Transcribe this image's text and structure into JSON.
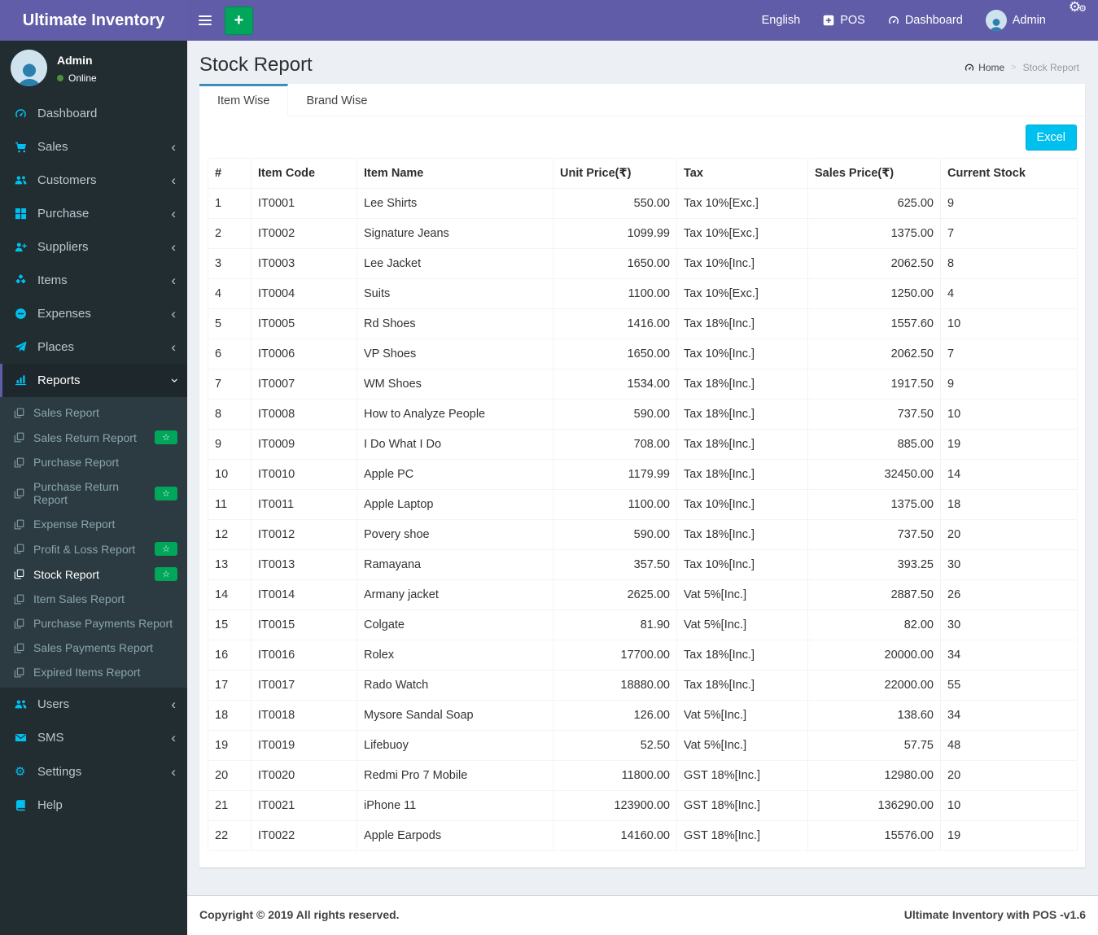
{
  "app": {
    "title": "Ultimate Inventory"
  },
  "navbar": {
    "language": "English",
    "pos": "POS",
    "dashboard": "Dashboard",
    "user": "Admin"
  },
  "sidebar": {
    "user": {
      "name": "Admin",
      "status": "Online"
    },
    "items": [
      {
        "id": "dashboard",
        "icon": "dashboard-icon",
        "label": "Dashboard"
      },
      {
        "id": "sales",
        "icon": "cart-icon",
        "label": "Sales",
        "chevron": "left"
      },
      {
        "id": "customers",
        "icon": "users-icon",
        "label": "Customers",
        "chevron": "left"
      },
      {
        "id": "purchase",
        "icon": "grid-icon",
        "label": "Purchase",
        "chevron": "left"
      },
      {
        "id": "suppliers",
        "icon": "user-plus-icon",
        "label": "Suppliers",
        "chevron": "left"
      },
      {
        "id": "items",
        "icon": "cubes-icon",
        "label": "Items",
        "chevron": "left"
      },
      {
        "id": "expenses",
        "icon": "minus-circle-icon",
        "label": "Expenses",
        "chevron": "left"
      },
      {
        "id": "places",
        "icon": "paper-plane-icon",
        "label": "Places",
        "chevron": "left"
      },
      {
        "id": "reports",
        "icon": "bar-chart-icon",
        "label": "Reports",
        "chevron": "down",
        "active": true,
        "submenu": [
          {
            "id": "sales-report",
            "icon": "copy-icon",
            "label": "Sales Report"
          },
          {
            "id": "sales-return-report",
            "icon": "copy-icon",
            "label": "Sales Return Report",
            "badge": true
          },
          {
            "id": "purchase-report",
            "icon": "copy-icon",
            "label": "Purchase Report"
          },
          {
            "id": "purchase-return-report",
            "icon": "copy-icon",
            "label": "Purchase Return Report",
            "badge": true
          },
          {
            "id": "expense-report",
            "icon": "copy-icon",
            "label": "Expense Report"
          },
          {
            "id": "profit-loss-report",
            "icon": "copy-icon",
            "label": "Profit & Loss Report",
            "badge": true
          },
          {
            "id": "stock-report",
            "icon": "copy-icon",
            "label": "Stock Report",
            "badge": true,
            "active": true
          },
          {
            "id": "item-sales-report",
            "icon": "copy-icon",
            "label": "Item Sales Report"
          },
          {
            "id": "purchase-payments-report",
            "icon": "copy-icon",
            "label": "Purchase Payments Report"
          },
          {
            "id": "sales-payments-report",
            "icon": "copy-icon",
            "label": "Sales Payments Report"
          },
          {
            "id": "expired-items-report",
            "icon": "copy-icon",
            "label": "Expired Items Report"
          }
        ]
      },
      {
        "id": "users",
        "icon": "users-icon",
        "label": "Users",
        "chevron": "left"
      },
      {
        "id": "sms",
        "icon": "envelope-icon",
        "label": "SMS",
        "chevron": "left"
      },
      {
        "id": "settings",
        "icon": "gears-icon",
        "label": "Settings",
        "chevron": "left"
      },
      {
        "id": "help",
        "icon": "book-icon",
        "label": "Help"
      }
    ]
  },
  "page": {
    "title": "Stock Report",
    "breadcrumb": {
      "home": "Home",
      "separator": ">",
      "current": "Stock Report"
    }
  },
  "tabs": [
    {
      "label": "Item Wise",
      "active": true
    },
    {
      "label": "Brand Wise",
      "active": false
    }
  ],
  "toolbar": {
    "excel_label": "Excel"
  },
  "table": {
    "columns": [
      "#",
      "Item Code",
      "Item Name",
      "Unit Price(₹)",
      "Tax",
      "Sales Price(₹)",
      "Current Stock"
    ],
    "rows": [
      [
        "1",
        "IT0001",
        "Lee Shirts",
        "550.00",
        "Tax 10%[Exc.]",
        "625.00",
        "9"
      ],
      [
        "2",
        "IT0002",
        "Signature Jeans",
        "1099.99",
        "Tax 10%[Exc.]",
        "1375.00",
        "7"
      ],
      [
        "3",
        "IT0003",
        "Lee Jacket",
        "1650.00",
        "Tax 10%[Inc.]",
        "2062.50",
        "8"
      ],
      [
        "4",
        "IT0004",
        "Suits",
        "1100.00",
        "Tax 10%[Exc.]",
        "1250.00",
        "4"
      ],
      [
        "5",
        "IT0005",
        "Rd Shoes",
        "1416.00",
        "Tax 18%[Inc.]",
        "1557.60",
        "10"
      ],
      [
        "6",
        "IT0006",
        "VP Shoes",
        "1650.00",
        "Tax 10%[Inc.]",
        "2062.50",
        "7"
      ],
      [
        "7",
        "IT0007",
        "WM Shoes",
        "1534.00",
        "Tax 18%[Inc.]",
        "1917.50",
        "9"
      ],
      [
        "8",
        "IT0008",
        "How to Analyze People",
        "590.00",
        "Tax 18%[Inc.]",
        "737.50",
        "10"
      ],
      [
        "9",
        "IT0009",
        "I Do What I Do",
        "708.00",
        "Tax 18%[Inc.]",
        "885.00",
        "19"
      ],
      [
        "10",
        "IT0010",
        "Apple PC",
        "1179.99",
        "Tax 18%[Inc.]",
        "32450.00",
        "14"
      ],
      [
        "11",
        "IT0011",
        "Apple Laptop",
        "1100.00",
        "Tax 10%[Inc.]",
        "1375.00",
        "18"
      ],
      [
        "12",
        "IT0012",
        "Povery shoe",
        "590.00",
        "Tax 18%[Inc.]",
        "737.50",
        "20"
      ],
      [
        "13",
        "IT0013",
        "Ramayana",
        "357.50",
        "Tax 10%[Inc.]",
        "393.25",
        "30"
      ],
      [
        "14",
        "IT0014",
        "Armany jacket",
        "2625.00",
        "Vat 5%[Inc.]",
        "2887.50",
        "26"
      ],
      [
        "15",
        "IT0015",
        "Colgate",
        "81.90",
        "Vat 5%[Inc.]",
        "82.00",
        "30"
      ],
      [
        "16",
        "IT0016",
        "Rolex",
        "17700.00",
        "Tax 18%[Inc.]",
        "20000.00",
        "34"
      ],
      [
        "17",
        "IT0017",
        "Rado Watch",
        "18880.00",
        "Tax 18%[Inc.]",
        "22000.00",
        "55"
      ],
      [
        "18",
        "IT0018",
        "Mysore Sandal Soap",
        "126.00",
        "Vat 5%[Inc.]",
        "138.60",
        "34"
      ],
      [
        "19",
        "IT0019",
        "Lifebuoy",
        "52.50",
        "Vat 5%[Inc.]",
        "57.75",
        "48"
      ],
      [
        "20",
        "IT0020",
        "Redmi Pro 7 Mobile",
        "11800.00",
        "GST 18%[Inc.]",
        "12980.00",
        "20"
      ],
      [
        "21",
        "IT0021",
        "iPhone 11",
        "123900.00",
        "GST 18%[Inc.]",
        "136290.00",
        "10"
      ],
      [
        "22",
        "IT0022",
        "Apple Earpods",
        "14160.00",
        "GST 18%[Inc.]",
        "15576.00",
        "19"
      ]
    ]
  },
  "footer": {
    "left": "Copyright © 2019 All rights reserved.",
    "right": "Ultimate Inventory with POS -v1.6"
  },
  "colors": {
    "navbar": "#605ca8",
    "logo": "#615da9",
    "sidebar": "#222d32",
    "submenu": "#2c3b41",
    "active_item": "#1e282c",
    "green": "#00a65a",
    "info": "#00c0ef",
    "tab_active": "#3c8dbc",
    "content_bg": "#ecf0f5",
    "icon": "#00c0ef"
  },
  "icons": {
    "hamburger-icon": "bars",
    "plus-icon": "+",
    "plus-square-icon": "svg-plus-square",
    "dashboard-icon": "svg-gauge",
    "cogs-icon": "⚙",
    "person-icon": "svg-person",
    "cart-icon": "svg-cart",
    "users-icon": "svg-users",
    "grid-icon": "svg-grid",
    "user-plus-icon": "svg-user-plus",
    "cubes-icon": "svg-cubes",
    "minus-circle-icon": "svg-minus-circle",
    "paper-plane-icon": "svg-paper-plane",
    "bar-chart-icon": "svg-bar-chart",
    "copy-icon": "svg-copy",
    "envelope-icon": "svg-envelope",
    "gears-icon": "⚙",
    "book-icon": "svg-book",
    "star-icon": "☆",
    "chevron-left-icon": "‹",
    "chevron-down-icon": "‹|rot"
  }
}
